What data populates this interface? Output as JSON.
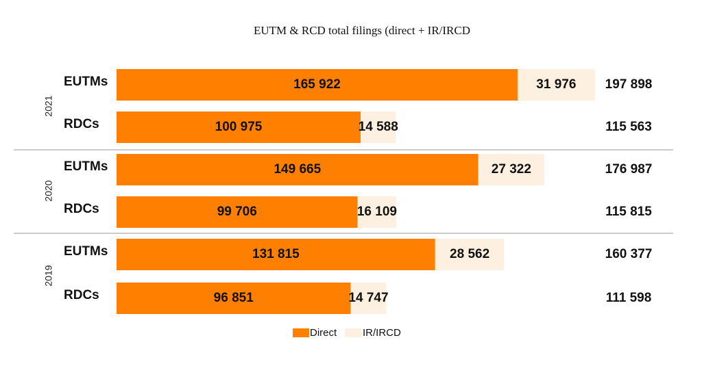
{
  "chart_data": {
    "type": "bar",
    "orientation": "horizontal",
    "stacked": true,
    "title": "EUTM & RCD total filings (direct + IR/IRCD",
    "groups": [
      "2021",
      "2020",
      "2019"
    ],
    "categories": [
      "EUTMs",
      "RDCs"
    ],
    "series": [
      {
        "name": "Direct",
        "values": [
          [
            165922,
            100975
          ],
          [
            149665,
            99706
          ],
          [
            131815,
            96851
          ]
        ]
      },
      {
        "name": "IR/IRCD",
        "values": [
          [
            31976,
            14588
          ],
          [
            27322,
            16109
          ],
          [
            28562,
            14747
          ]
        ]
      }
    ],
    "value_labels": {
      "Direct": [
        [
          "165 922",
          "100 975"
        ],
        [
          "149 665",
          "99 706"
        ],
        [
          "131 815",
          "96 851"
        ]
      ],
      "IR/IRCD": [
        [
          "31 976",
          "14 588"
        ],
        [
          "27 322",
          "16 109"
        ],
        [
          "28 562",
          "14 747"
        ]
      ]
    },
    "totals": [
      [
        "197 898",
        "115 563"
      ],
      [
        "176 987",
        "115 815"
      ],
      [
        "160 377",
        "111 598"
      ]
    ],
    "legend_position": "bottom",
    "grid": false,
    "colors": {
      "Direct": "#FF8000",
      "IR/IRCD": "#FDF0E0",
      "separator": "#999999"
    }
  }
}
